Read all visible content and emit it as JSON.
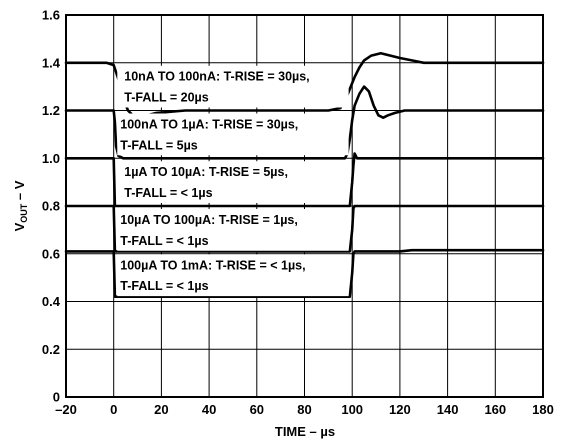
{
  "chart_data": {
    "type": "line",
    "xlabel": "TIME – µs",
    "ylabel_main": "V",
    "ylabel_sub": "OUT",
    "ylabel_tail": " – V",
    "xlim": [
      -20,
      180
    ],
    "ylim": [
      0,
      1.6
    ],
    "x_ticks": [
      -20,
      0,
      20,
      40,
      60,
      80,
      100,
      120,
      140,
      160,
      180
    ],
    "y_ticks": [
      0,
      0.2,
      0.4,
      0.6,
      0.8,
      1.0,
      1.2,
      1.4,
      1.6
    ],
    "x_tick_labels": [
      "–20",
      "0",
      "20",
      "40",
      "60",
      "80",
      "100",
      "120",
      "140",
      "160",
      "180"
    ],
    "y_tick_labels": [
      "0",
      "0.2",
      "0.4",
      "0.6",
      "0.8",
      "1.0",
      "1.2",
      "1.4",
      "1.6"
    ],
    "grid": true,
    "series": [
      {
        "annotation": [
          "10nA TO 100nA: T-RISE = 30µs,",
          "T-FALL = 20µs"
        ],
        "x": [
          -20,
          -3,
          0,
          2,
          4,
          6,
          8,
          10,
          14,
          18,
          30,
          60,
          90,
          95,
          97,
          99,
          101,
          103,
          105,
          108,
          112,
          116,
          120,
          125,
          130,
          140,
          160,
          180
        ],
        "y": [
          1.4,
          1.4,
          1.39,
          1.33,
          1.25,
          1.2,
          1.18,
          1.17,
          1.18,
          1.19,
          1.2,
          1.2,
          1.2,
          1.21,
          1.24,
          1.29,
          1.34,
          1.38,
          1.41,
          1.43,
          1.44,
          1.43,
          1.42,
          1.41,
          1.4,
          1.4,
          1.4,
          1.4
        ]
      },
      {
        "annotation": [
          "100nA TO 1µA: T-RISE = 30µs,",
          "T-FALL = 5µs"
        ],
        "x": [
          -20,
          0,
          0.5,
          1,
          2,
          4,
          10,
          60,
          97,
          98,
          99,
          100,
          101,
          103,
          105,
          107,
          109,
          111,
          113,
          115,
          118,
          122,
          130,
          180
        ],
        "y": [
          1.2,
          1.2,
          1.15,
          1.05,
          1.01,
          1.0,
          1.0,
          1.0,
          1.0,
          1.02,
          1.08,
          1.16,
          1.22,
          1.27,
          1.3,
          1.28,
          1.22,
          1.18,
          1.17,
          1.18,
          1.19,
          1.2,
          1.2,
          1.2
        ]
      },
      {
        "annotation": [
          "1µA TO 10µA: T-RISE = 5µs,",
          "T-FALL = < 1µs"
        ],
        "x": [
          -20,
          0,
          0.5,
          1,
          99,
          100,
          100.5,
          101,
          102,
          180
        ],
        "y": [
          1.0,
          1.0,
          0.8,
          0.8,
          0.8,
          0.9,
          0.97,
          1.02,
          1.0,
          1.0
        ]
      },
      {
        "annotation": [
          "10µA TO 100µA: T-RISE = 1µs,",
          "T-FALL = < 1µs"
        ],
        "x": [
          -20,
          0,
          0.5,
          1,
          99,
          100,
          100.5,
          101,
          180
        ],
        "y": [
          0.8,
          0.8,
          0.61,
          0.61,
          0.61,
          0.7,
          0.79,
          0.8,
          0.8
        ]
      },
      {
        "annotation": [
          "100µA TO 1mA: T-RISE = < 1µs,",
          "T-FALL = < 1µs"
        ],
        "x": [
          -20,
          0,
          0.5,
          1,
          99,
          100,
          100.5,
          101,
          120,
          125,
          180
        ],
        "y": [
          0.61,
          0.61,
          0.42,
          0.42,
          0.42,
          0.52,
          0.6,
          0.61,
          0.61,
          0.615,
          0.615
        ]
      }
    ]
  }
}
